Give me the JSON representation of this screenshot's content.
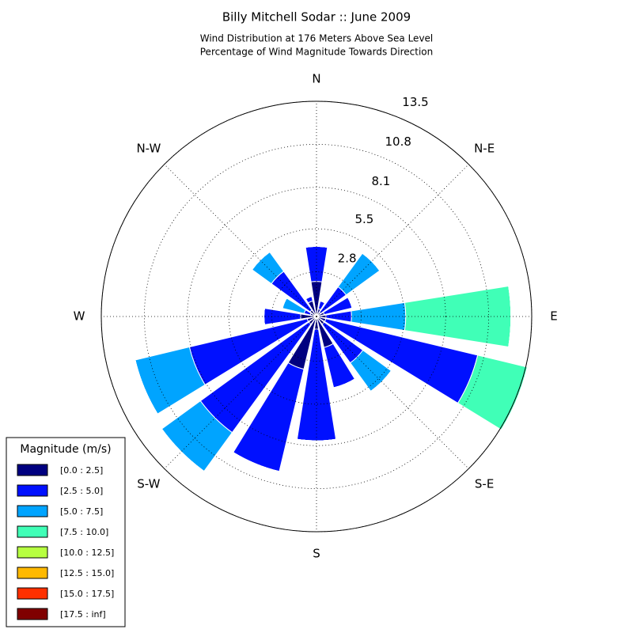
{
  "chart_data": {
    "type": "windrose",
    "title": "Billy Mitchell Sodar :: June 2009",
    "subtitle": [
      "Wind Distribution at 176 Meters Above Sea Level",
      "Percentage of Wind Magnitude Towards Direction"
    ],
    "categories": [
      "N",
      null,
      "N-E",
      null,
      "E",
      null,
      "S-E",
      null,
      "S",
      null,
      "S-W",
      null,
      "W",
      null,
      "N-W",
      null
    ],
    "rlim": [
      0,
      13.5
    ],
    "rticks": [
      2.8,
      5.5,
      8.1,
      10.8,
      13.5
    ],
    "grid": true,
    "legend_title": "Magnitude (m/s)",
    "legend_position": "lower left",
    "series": [
      {
        "name": "[0.0 : 2.5]",
        "color": "#000080",
        "values": [
          2.2,
          0.5,
          0.3,
          0.5,
          0.6,
          0.6,
          0.6,
          2.0,
          0.8,
          3.4,
          0.6,
          0.6,
          1.0,
          0.4,
          0.5,
          1.0
        ]
      },
      {
        "name": "[2.5 : 5.0]",
        "color": "#0010ff",
        "values": [
          2.2,
          0.5,
          2.0,
          1.8,
          1.6,
          9.8,
          3.0,
          2.6,
          7.0,
          6.6,
          8.4,
          7.6,
          2.3,
          0.4,
          3.0,
          0.3
        ]
      },
      {
        "name": "[5.0 : 7.5]",
        "color": "#00a4ff",
        "values": [
          0,
          0,
          2.6,
          0,
          3.4,
          0,
          2.2,
          0,
          0,
          0,
          3.0,
          3.5,
          0,
          1.4,
          1.5,
          0
        ]
      },
      {
        "name": "[7.5 : 10.0]",
        "color": "#40ffb7",
        "values": [
          0,
          0,
          0,
          0,
          6.6,
          3.2,
          0,
          0,
          0,
          0,
          0,
          0,
          0,
          0,
          0,
          0
        ]
      },
      {
        "name": "[10.0 : 12.5]",
        "color": "#b7ff40",
        "values": [
          0,
          0,
          0,
          0,
          0,
          0,
          0,
          0,
          0,
          0,
          0,
          0,
          0,
          0,
          0,
          0
        ]
      },
      {
        "name": "[12.5 : 15.0]",
        "color": "#ffb900",
        "values": [
          0,
          0,
          0,
          0,
          0,
          0,
          0,
          0,
          0,
          0,
          0,
          0,
          0,
          0,
          0,
          0
        ]
      },
      {
        "name": "[15.0 : 17.5]",
        "color": "#ff3000",
        "values": [
          0,
          0,
          0,
          0,
          0,
          0,
          0,
          0,
          0,
          0,
          0,
          0,
          0,
          0,
          0,
          0
        ]
      },
      {
        "name": "[17.5 : inf]",
        "color": "#800000",
        "values": [
          0,
          0,
          0,
          0,
          0,
          0,
          0,
          0,
          0,
          0,
          0,
          0,
          0,
          0,
          0,
          0
        ]
      }
    ]
  }
}
